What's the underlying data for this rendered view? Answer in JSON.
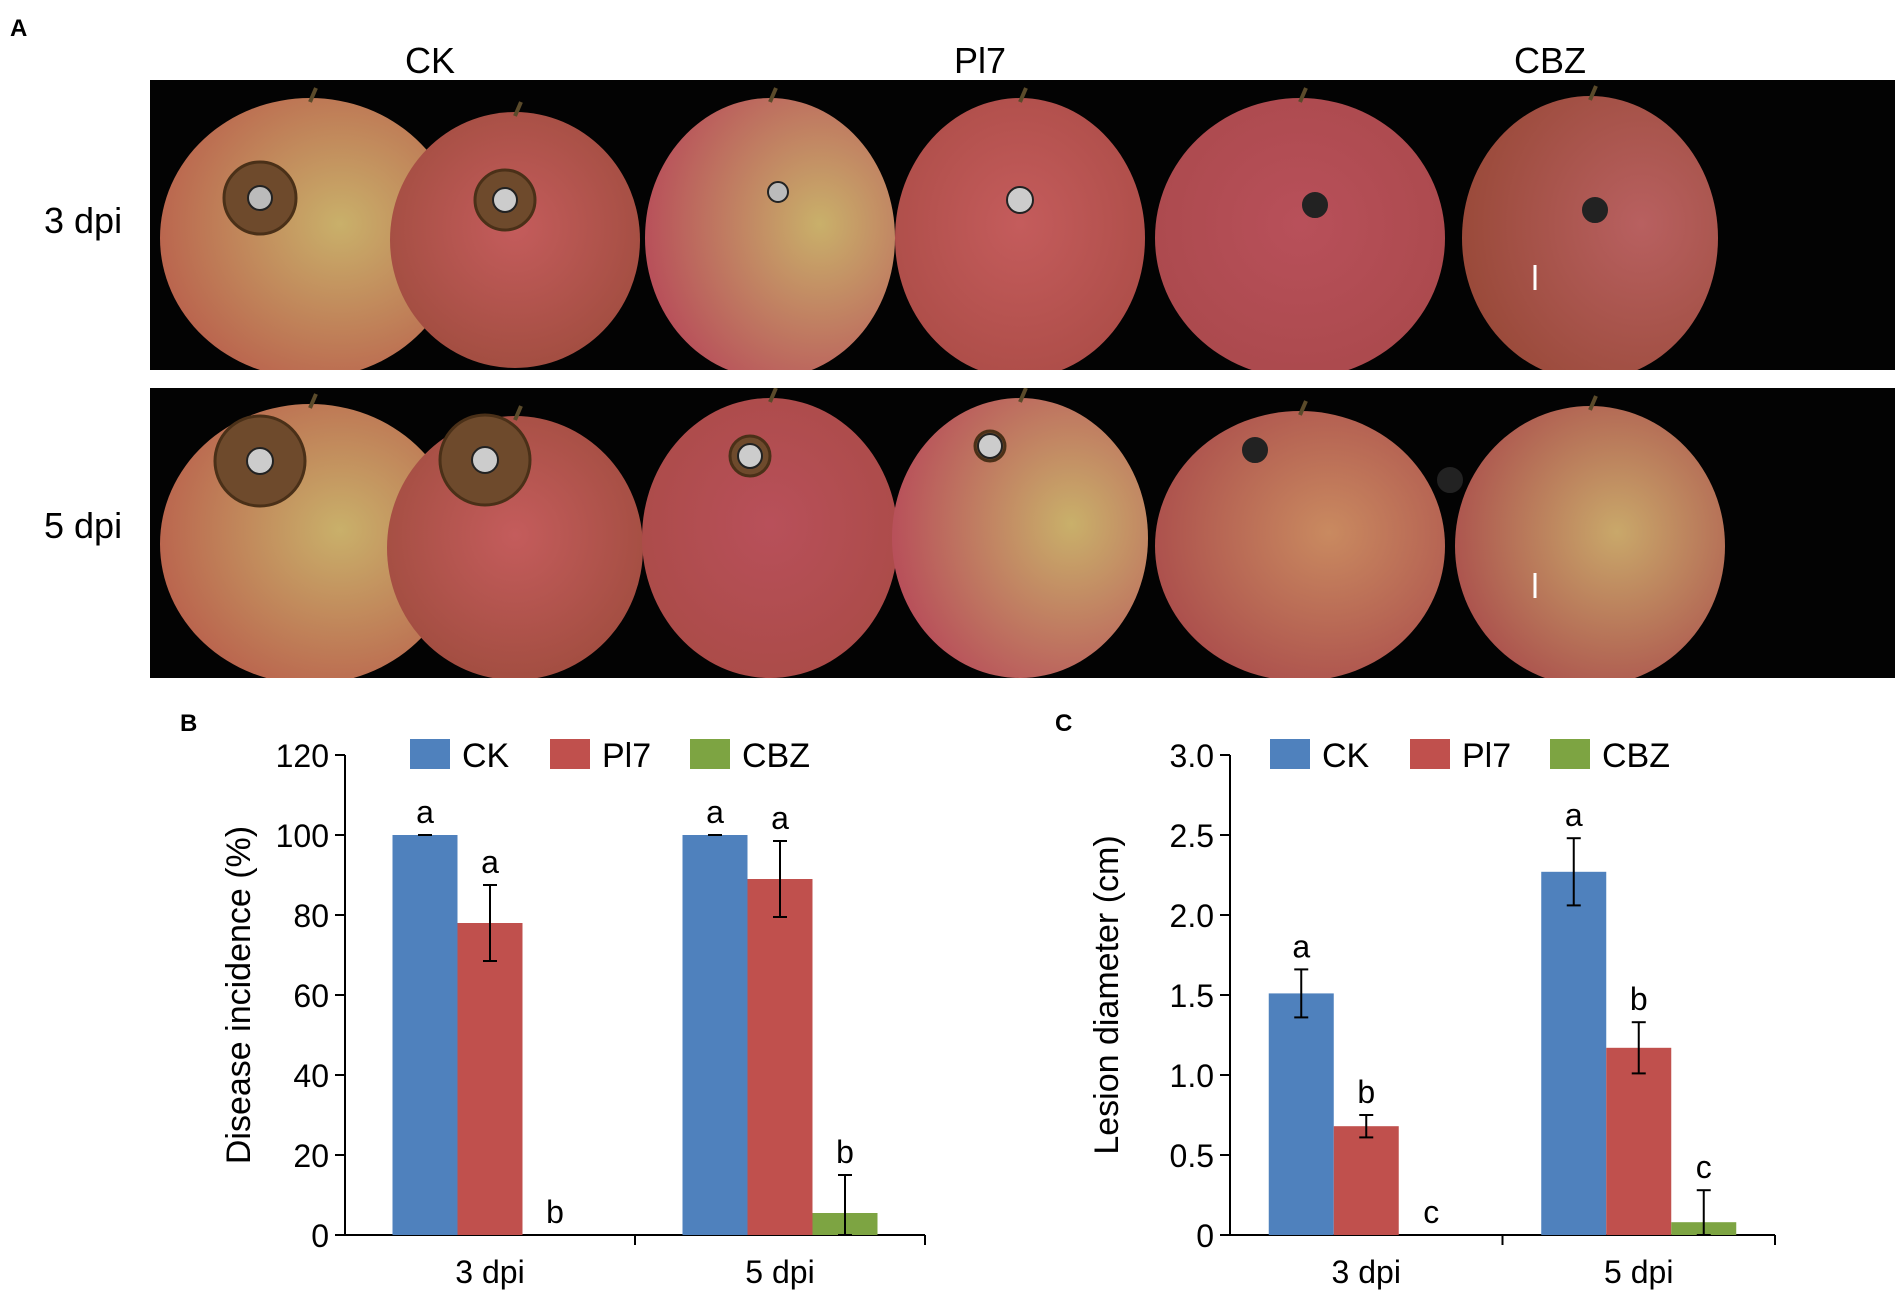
{
  "figure": {
    "panel_a": "A",
    "panel_b": "B",
    "panel_c": "C",
    "columns": [
      "CK",
      "Pl7",
      "CBZ"
    ],
    "rows": [
      "3 dpi",
      "5 dpi"
    ]
  },
  "colors": {
    "CK": "#4f81bd",
    "Pl7": "#c0504d",
    "CBZ": "#7da442",
    "photo_bg": "#030303",
    "apple_red": "#b8505a",
    "apple_yellow": "#c9b06a",
    "lesion": "#6e4a2c"
  },
  "chart_data": [
    {
      "type": "bar",
      "panel": "B",
      "title": "",
      "xlabel": "",
      "ylabel": "Disease incidence (%)",
      "categories": [
        "3 dpi",
        "5 dpi"
      ],
      "ylim": [
        0,
        120
      ],
      "yticks": [
        "0",
        "20",
        "40",
        "60",
        "80",
        "100",
        "120"
      ],
      "legend": "top",
      "series": [
        {
          "name": "CK",
          "values": [
            100,
            100
          ],
          "errors": [
            0,
            0
          ],
          "letters": [
            "a",
            "a"
          ]
        },
        {
          "name": "Pl7",
          "values": [
            78,
            89
          ],
          "errors": [
            9.5,
            9.5
          ],
          "letters": [
            "a",
            "a"
          ]
        },
        {
          "name": "CBZ",
          "values": [
            0,
            5.5
          ],
          "errors": [
            0,
            9.5
          ],
          "letters": [
            "b",
            "b"
          ]
        }
      ]
    },
    {
      "type": "bar",
      "panel": "C",
      "title": "",
      "xlabel": "",
      "ylabel": "Lesion diameter (cm)",
      "categories": [
        "3 dpi",
        "5 dpi"
      ],
      "ylim": [
        0,
        3.0
      ],
      "yticks": [
        "0",
        "0.5",
        "1.0",
        "1.5",
        "2.0",
        "2.5",
        "3.0"
      ],
      "legend": "top",
      "series": [
        {
          "name": "CK",
          "values": [
            1.51,
            2.27
          ],
          "errors": [
            0.15,
            0.21
          ],
          "letters": [
            "a",
            "a"
          ]
        },
        {
          "name": "Pl7",
          "values": [
            0.68,
            1.17
          ],
          "errors": [
            0.07,
            0.16
          ],
          "letters": [
            "b",
            "b"
          ]
        },
        {
          "name": "CBZ",
          "values": [
            0,
            0.08
          ],
          "errors": [
            0,
            0.2
          ],
          "letters": [
            "c",
            "c"
          ]
        }
      ]
    }
  ]
}
